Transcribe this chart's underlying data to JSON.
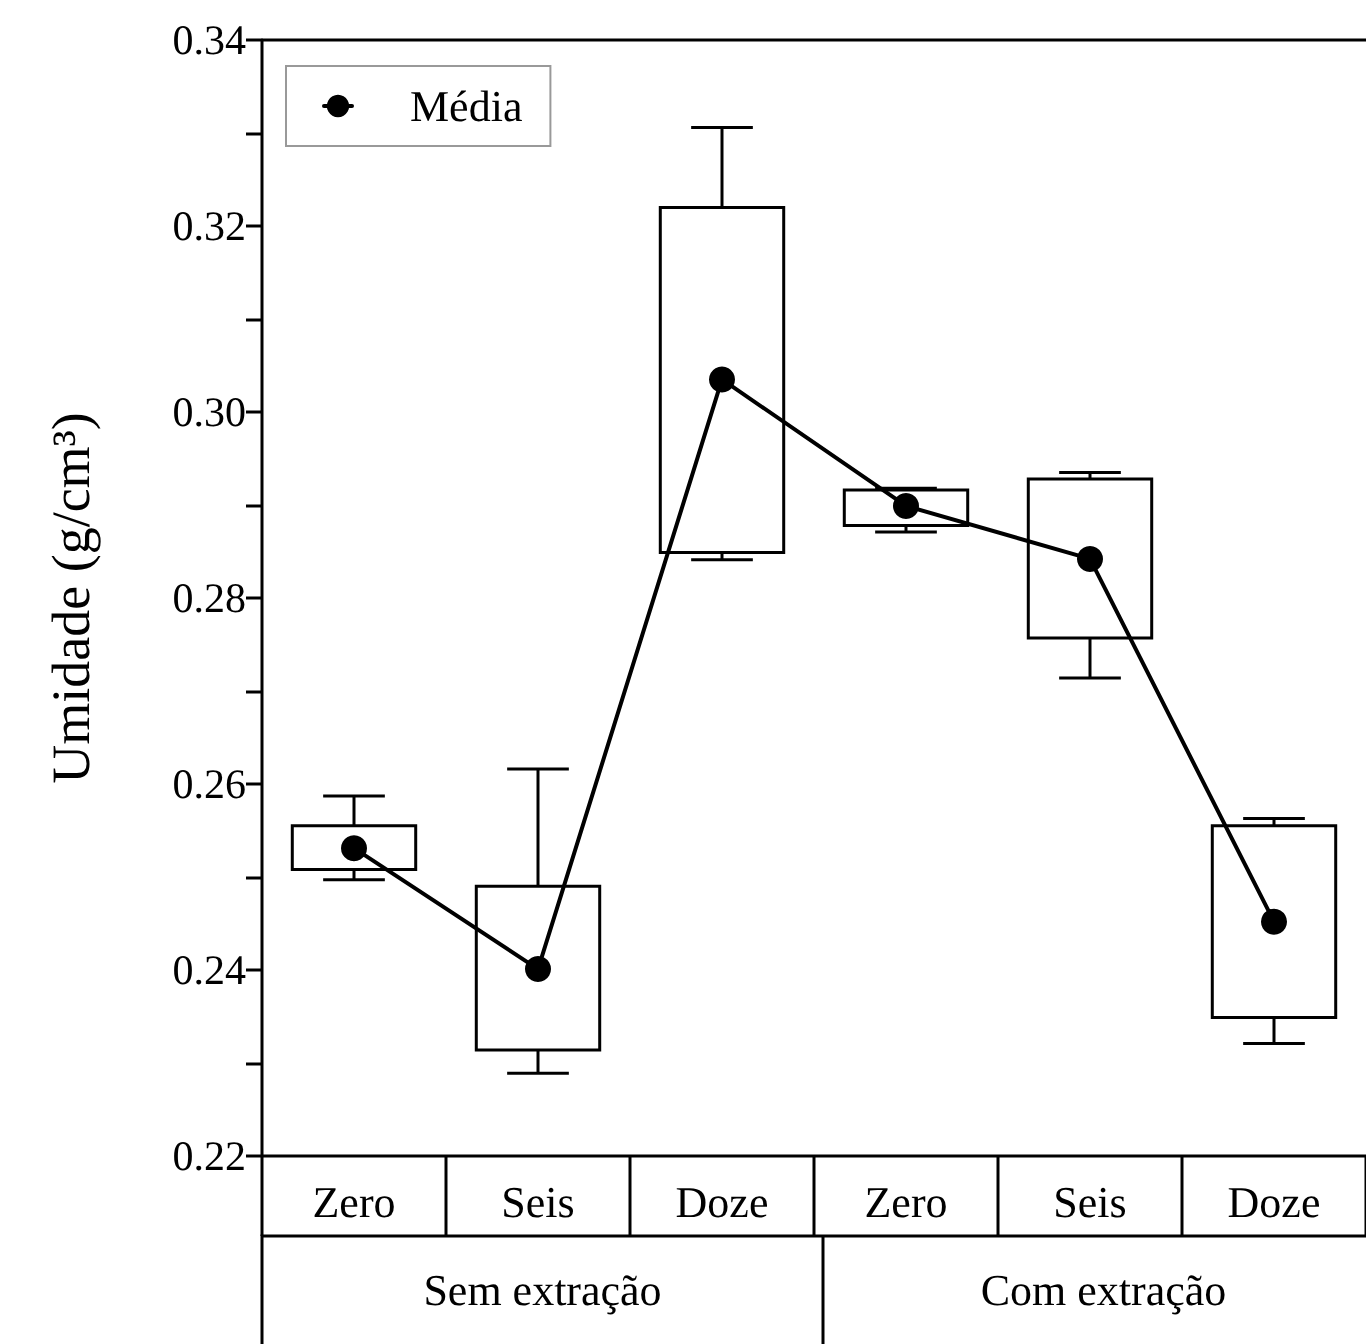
{
  "chart_data": {
    "type": "box",
    "ylabel": "Umidade (g/cm³)",
    "categories": [
      "Zero",
      "Seis",
      "Doze",
      "Zero",
      "Seis",
      "Doze"
    ],
    "boxes": [
      {
        "low": 0.2497,
        "q1": 0.2508,
        "median": null,
        "q3": 0.2555,
        "high": 0.2587
      },
      {
        "low": 0.2289,
        "q1": 0.2314,
        "median": null,
        "q3": 0.249,
        "high": 0.2616
      },
      {
        "low": 0.2841,
        "q1": 0.2849,
        "median": null,
        "q3": 0.322,
        "high": 0.3306
      },
      {
        "low": 0.2871,
        "q1": 0.2878,
        "median": null,
        "q3": 0.2916,
        "high": 0.2918
      },
      {
        "low": 0.2714,
        "q1": 0.2757,
        "median": null,
        "q3": 0.2928,
        "high": 0.2935
      },
      {
        "low": 0.2321,
        "q1": 0.2349,
        "median": null,
        "q3": 0.2555,
        "high": 0.2563
      }
    ],
    "series": [
      {
        "type": "line",
        "name": "Média",
        "color": "#000000",
        "values": [
          0.2531,
          0.2401,
          0.3035,
          0.2899,
          0.2842,
          0.2452
        ],
        "marker": "circle",
        "line_style": "solid"
      }
    ],
    "ylim": [
      0.22,
      0.34
    ],
    "yticks": [
      0.22,
      {
        "value": 0.23,
        "label": null
      },
      0.24,
      {
        "value": 0.25,
        "label": null
      },
      0.26,
      {
        "value": 0.27,
        "label": null
      },
      0.28,
      {
        "value": 0.29,
        "label": null
      },
      {
        "value": 0.3,
        "label": "0.30"
      },
      {
        "value": 0.31,
        "label": null
      },
      0.32,
      {
        "value": 0.33,
        "label": null
      },
      0.34
    ],
    "annotations": [
      "Sem extração",
      "Com extração"
    ],
    "legend": "top left",
    "grid": false
  }
}
